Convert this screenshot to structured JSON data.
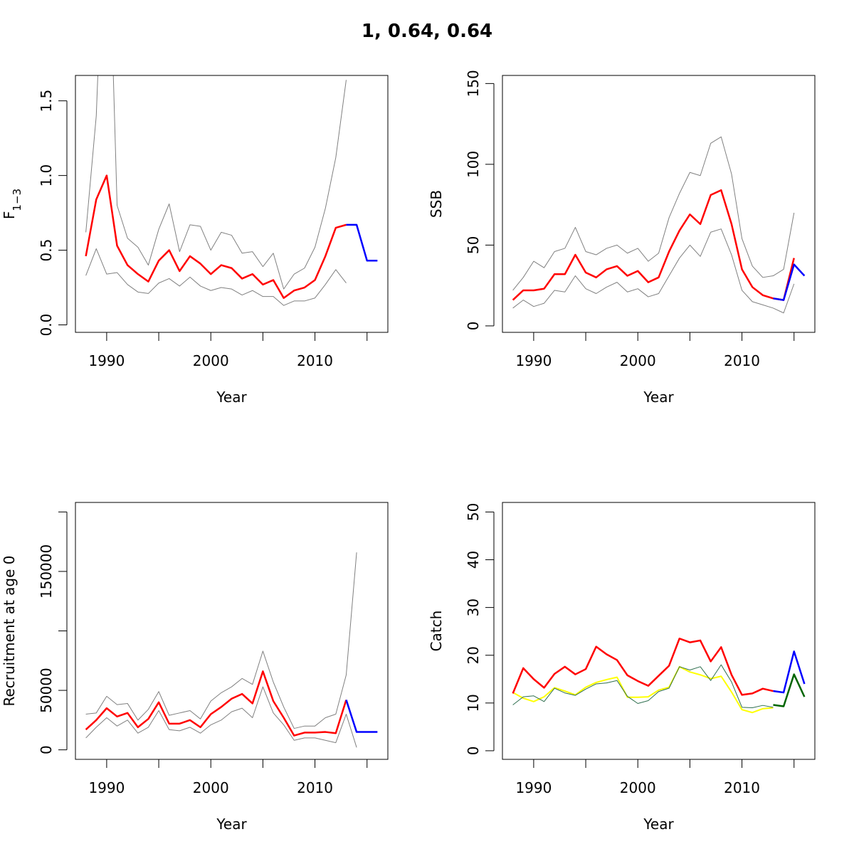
{
  "title": "1, 0.64, 0.64",
  "chart_data": [
    {
      "type": "line",
      "xlabel": "Year",
      "ylabel": "F",
      "ylabel_sub": "1−3",
      "xlim": [
        1987,
        2017
      ],
      "ylim": [
        -0.05,
        1.67
      ],
      "xticks": [
        1990,
        2000,
        2010
      ],
      "xtick_marks": [
        1990,
        1995,
        2000,
        2005,
        2010,
        2015
      ],
      "yticks": [
        0.0,
        0.5,
        1.0,
        1.5
      ],
      "ytick_labels": [
        "0.0",
        "0.5",
        "1.0",
        "1.5"
      ],
      "series": [
        {
          "role": "upper",
          "color": "#808080",
          "width": 1,
          "x": [
            1988,
            1989,
            1990,
            1991,
            1992,
            1993,
            1994,
            1995,
            1996,
            1997,
            1998,
            1999,
            2000,
            2001,
            2002,
            2003,
            2004,
            2005,
            2006,
            2007,
            2008,
            2009,
            2010,
            2011,
            2012,
            2013
          ],
          "y": [
            0.62,
            1.4,
            3.2,
            0.8,
            0.58,
            0.52,
            0.4,
            0.64,
            0.81,
            0.49,
            0.67,
            0.66,
            0.5,
            0.62,
            0.6,
            0.48,
            0.49,
            0.39,
            0.48,
            0.24,
            0.34,
            0.38,
            0.52,
            0.78,
            1.12,
            1.64
          ]
        },
        {
          "role": "lower",
          "color": "#808080",
          "width": 1,
          "x": [
            1988,
            1989,
            1990,
            1991,
            1992,
            1993,
            1994,
            1995,
            1996,
            1997,
            1998,
            1999,
            2000,
            2001,
            2002,
            2003,
            2004,
            2005,
            2006,
            2007,
            2008,
            2009,
            2010,
            2011,
            2012,
            2013
          ],
          "y": [
            0.33,
            0.51,
            0.34,
            0.35,
            0.27,
            0.22,
            0.21,
            0.28,
            0.31,
            0.26,
            0.32,
            0.26,
            0.23,
            0.25,
            0.24,
            0.2,
            0.23,
            0.19,
            0.19,
            0.13,
            0.16,
            0.16,
            0.18,
            0.27,
            0.37,
            0.28
          ]
        },
        {
          "role": "estimate",
          "color": "#ff0000",
          "width": 2.5,
          "x": [
            1988,
            1989,
            1990,
            1991,
            1992,
            1993,
            1994,
            1995,
            1996,
            1997,
            1998,
            1999,
            2000,
            2001,
            2002,
            2003,
            2004,
            2005,
            2006,
            2007,
            2008,
            2009,
            2010,
            2011,
            2012,
            2013
          ],
          "y": [
            0.46,
            0.84,
            1.0,
            0.53,
            0.4,
            0.34,
            0.29,
            0.43,
            0.5,
            0.36,
            0.46,
            0.41,
            0.34,
            0.4,
            0.38,
            0.31,
            0.34,
            0.27,
            0.3,
            0.18,
            0.23,
            0.25,
            0.3,
            0.46,
            0.65,
            0.67
          ]
        },
        {
          "role": "projection",
          "color": "#0000ff",
          "width": 2.5,
          "x": [
            2013,
            2014,
            2015,
            2016
          ],
          "y": [
            0.67,
            0.67,
            0.43,
            0.43
          ]
        }
      ]
    },
    {
      "type": "line",
      "xlabel": "Year",
      "ylabel": "SSB",
      "xlim": [
        1987,
        2017
      ],
      "ylim": [
        -4,
        155
      ],
      "xticks": [
        1990,
        2000,
        2010
      ],
      "xtick_marks": [
        1990,
        1995,
        2000,
        2005,
        2010,
        2015
      ],
      "yticks": [
        0,
        50,
        100,
        150
      ],
      "ytick_labels": [
        "0",
        "50",
        "100",
        "150"
      ],
      "series": [
        {
          "role": "upper",
          "color": "#808080",
          "width": 1,
          "x": [
            1988,
            1989,
            1990,
            1991,
            1992,
            1993,
            1994,
            1995,
            1996,
            1997,
            1998,
            1999,
            2000,
            2001,
            2002,
            2003,
            2004,
            2005,
            2006,
            2007,
            2008,
            2009,
            2010,
            2011,
            2012,
            2013,
            2014,
            2015
          ],
          "y": [
            22,
            30,
            40,
            36,
            46,
            48,
            61,
            46,
            44,
            48,
            50,
            45,
            48,
            40,
            45,
            67,
            82,
            95,
            93,
            113,
            117,
            94,
            54,
            37,
            30,
            31,
            35,
            70
          ]
        },
        {
          "role": "lower",
          "color": "#808080",
          "width": 1,
          "x": [
            1988,
            1989,
            1990,
            1991,
            1992,
            1993,
            1994,
            1995,
            1996,
            1997,
            1998,
            1999,
            2000,
            2001,
            2002,
            2003,
            2004,
            2005,
            2006,
            2007,
            2008,
            2009,
            2010,
            2011,
            2012,
            2013,
            2014,
            2015
          ],
          "y": [
            11,
            16,
            12,
            14,
            22,
            21,
            31,
            23,
            20,
            24,
            27,
            21,
            23,
            18,
            20,
            31,
            42,
            50,
            43,
            58,
            60,
            44,
            22,
            15,
            13,
            11,
            8,
            26
          ]
        },
        {
          "role": "estimate",
          "color": "#ff0000",
          "width": 2.5,
          "x": [
            1988,
            1989,
            1990,
            1991,
            1992,
            1993,
            1994,
            1995,
            1996,
            1997,
            1998,
            1999,
            2000,
            2001,
            2002,
            2003,
            2004,
            2005,
            2006,
            2007,
            2008,
            2009,
            2010,
            2011,
            2012,
            2013,
            2014,
            2015
          ],
          "y": [
            16,
            22,
            22,
            23,
            32,
            32,
            44,
            33,
            30,
            35,
            37,
            31,
            34,
            27,
            30,
            46,
            59,
            69,
            63,
            81,
            84,
            63,
            35,
            24,
            19,
            17,
            16,
            42
          ]
        },
        {
          "role": "projection",
          "color": "#0000ff",
          "width": 2.5,
          "x": [
            2013,
            2014,
            2015,
            2016
          ],
          "y": [
            17,
            16,
            38,
            31
          ]
        }
      ]
    },
    {
      "type": "line",
      "xlabel": "Year",
      "ylabel": "Recruitment at age 0",
      "xlim": [
        1987,
        2017
      ],
      "ylim": [
        -8000,
        208000
      ],
      "xticks": [
        1990,
        2000,
        2010
      ],
      "xtick_marks": [
        1990,
        1995,
        2000,
        2005,
        2010,
        2015
      ],
      "yticks": [
        0,
        50000,
        100000,
        150000,
        200000
      ],
      "ytick_labels": [
        "0",
        "50000",
        "",
        "150000",
        ""
      ],
      "series": [
        {
          "role": "upper",
          "color": "#808080",
          "width": 1,
          "x": [
            1988,
            1989,
            1990,
            1991,
            1992,
            1993,
            1994,
            1995,
            1996,
            1997,
            1998,
            1999,
            2000,
            2001,
            2002,
            2003,
            2004,
            2005,
            2006,
            2007,
            2008,
            2009,
            2010,
            2011,
            2012,
            2013,
            2014
          ],
          "y": [
            30000,
            31000,
            45000,
            38000,
            39000,
            25000,
            34000,
            49000,
            29000,
            31000,
            33000,
            26000,
            41000,
            48000,
            53000,
            60000,
            55000,
            83000,
            57000,
            36000,
            18000,
            20000,
            20000,
            27000,
            30000,
            63000,
            166000
          ]
        },
        {
          "role": "lower",
          "color": "#808080",
          "width": 1,
          "x": [
            1988,
            1989,
            1990,
            1991,
            1992,
            1993,
            1994,
            1995,
            1996,
            1997,
            1998,
            1999,
            2000,
            2001,
            2002,
            2003,
            2004,
            2005,
            2006,
            2007,
            2008,
            2009,
            2010,
            2011,
            2012,
            2013,
            2014
          ],
          "y": [
            10000,
            19000,
            27000,
            20000,
            25000,
            14000,
            19000,
            33000,
            17000,
            16000,
            19000,
            14000,
            21000,
            25000,
            32000,
            35000,
            27000,
            53000,
            31000,
            21000,
            8000,
            10000,
            10000,
            8000,
            6000,
            30000,
            2000
          ]
        },
        {
          "role": "estimate",
          "color": "#ff0000",
          "width": 2.5,
          "x": [
            1988,
            1989,
            1990,
            1991,
            1992,
            1993,
            1994,
            1995,
            1996,
            1997,
            1998,
            1999,
            2000,
            2001,
            2002,
            2003,
            2004,
            2005,
            2006,
            2007,
            2008,
            2009,
            2010,
            2011,
            2012,
            2013
          ],
          "y": [
            17000,
            25000,
            35000,
            28000,
            31000,
            19000,
            26000,
            40000,
            22000,
            22000,
            25000,
            19000,
            30000,
            36000,
            43000,
            47000,
            39000,
            66000,
            41000,
            27000,
            12000,
            14500,
            14500,
            15000,
            14000,
            42000
          ]
        },
        {
          "role": "projection",
          "color": "#0000ff",
          "width": 2.5,
          "x": [
            2013,
            2014,
            2015,
            2016
          ],
          "y": [
            42000,
            15000,
            15000,
            15000
          ]
        }
      ]
    },
    {
      "type": "line",
      "xlabel": "Year",
      "ylabel": "Catch",
      "xlim": [
        1987,
        2017
      ],
      "ylim": [
        -1.8,
        52
      ],
      "xticks": [
        1990,
        2000,
        2010
      ],
      "xtick_marks": [
        1990,
        1995,
        2000,
        2005,
        2010,
        2015
      ],
      "yticks": [
        0,
        10,
        20,
        30,
        40,
        50
      ],
      "ytick_labels": [
        "0",
        "10",
        "20",
        "30",
        "40",
        "50"
      ],
      "series": [
        {
          "role": "observed-a",
          "color": "#ffff00",
          "width": 2,
          "x": [
            1988,
            1989,
            1990,
            1991,
            1992,
            1993,
            1994,
            1995,
            1996,
            1997,
            1998,
            1999,
            2000,
            2001,
            2002,
            2003,
            2004,
            2005,
            2006,
            2007,
            2008,
            2009,
            2010,
            2011,
            2012,
            2013
          ],
          "y": [
            12.2,
            11,
            10.3,
            11.3,
            13.2,
            12.5,
            11.7,
            13.3,
            14.3,
            14.9,
            15.4,
            11.2,
            11.2,
            11.3,
            12.7,
            13.3,
            17.6,
            16.5,
            15.9,
            15.1,
            15.6,
            12.3,
            8.6,
            8,
            8.8,
            9
          ]
        },
        {
          "role": "observed-b",
          "color": "#2f6f4f",
          "width": 1,
          "x": [
            1988,
            1989,
            1990,
            1991,
            1992,
            1993,
            1994,
            1995,
            1996,
            1997,
            1998,
            1999,
            2000,
            2001,
            2002,
            2003,
            2004,
            2005,
            2006,
            2007,
            2008,
            2009,
            2010,
            2011,
            2012,
            2013
          ],
          "y": [
            9.6,
            11.3,
            11.5,
            10.3,
            13.1,
            12.1,
            11.6,
            12.9,
            14,
            14.2,
            14.7,
            11.4,
            9.9,
            10.5,
            12.4,
            13.1,
            17.6,
            16.9,
            17.6,
            14.7,
            18,
            14.4,
            9.1,
            9,
            9.5,
            9.1
          ]
        },
        {
          "role": "estimate",
          "color": "#ff0000",
          "width": 2.5,
          "x": [
            1988,
            1989,
            1990,
            1991,
            1992,
            1993,
            1994,
            1995,
            1996,
            1997,
            1998,
            1999,
            2000,
            2001,
            2002,
            2003,
            2004,
            2005,
            2006,
            2007,
            2008,
            2009,
            2010,
            2011,
            2012,
            2013
          ],
          "y": [
            12,
            17.3,
            15,
            13.2,
            16.1,
            17.6,
            16,
            17.1,
            21.8,
            20.2,
            19,
            15.8,
            14.6,
            13.6,
            15.7,
            17.8,
            23.5,
            22.7,
            23.1,
            18.7,
            21.7,
            15.9,
            11.7,
            12,
            13,
            12.5
          ]
        },
        {
          "role": "projection",
          "color": "#0000ff",
          "width": 2.5,
          "x": [
            2013,
            2014,
            2015,
            2016
          ],
          "y": [
            12.5,
            12.2,
            20.8,
            14
          ]
        },
        {
          "role": "projection-catch",
          "color": "#006400",
          "width": 2.5,
          "x": [
            2013,
            2014,
            2015,
            2016
          ],
          "y": [
            9.6,
            9.3,
            16,
            11.3
          ]
        }
      ]
    }
  ]
}
